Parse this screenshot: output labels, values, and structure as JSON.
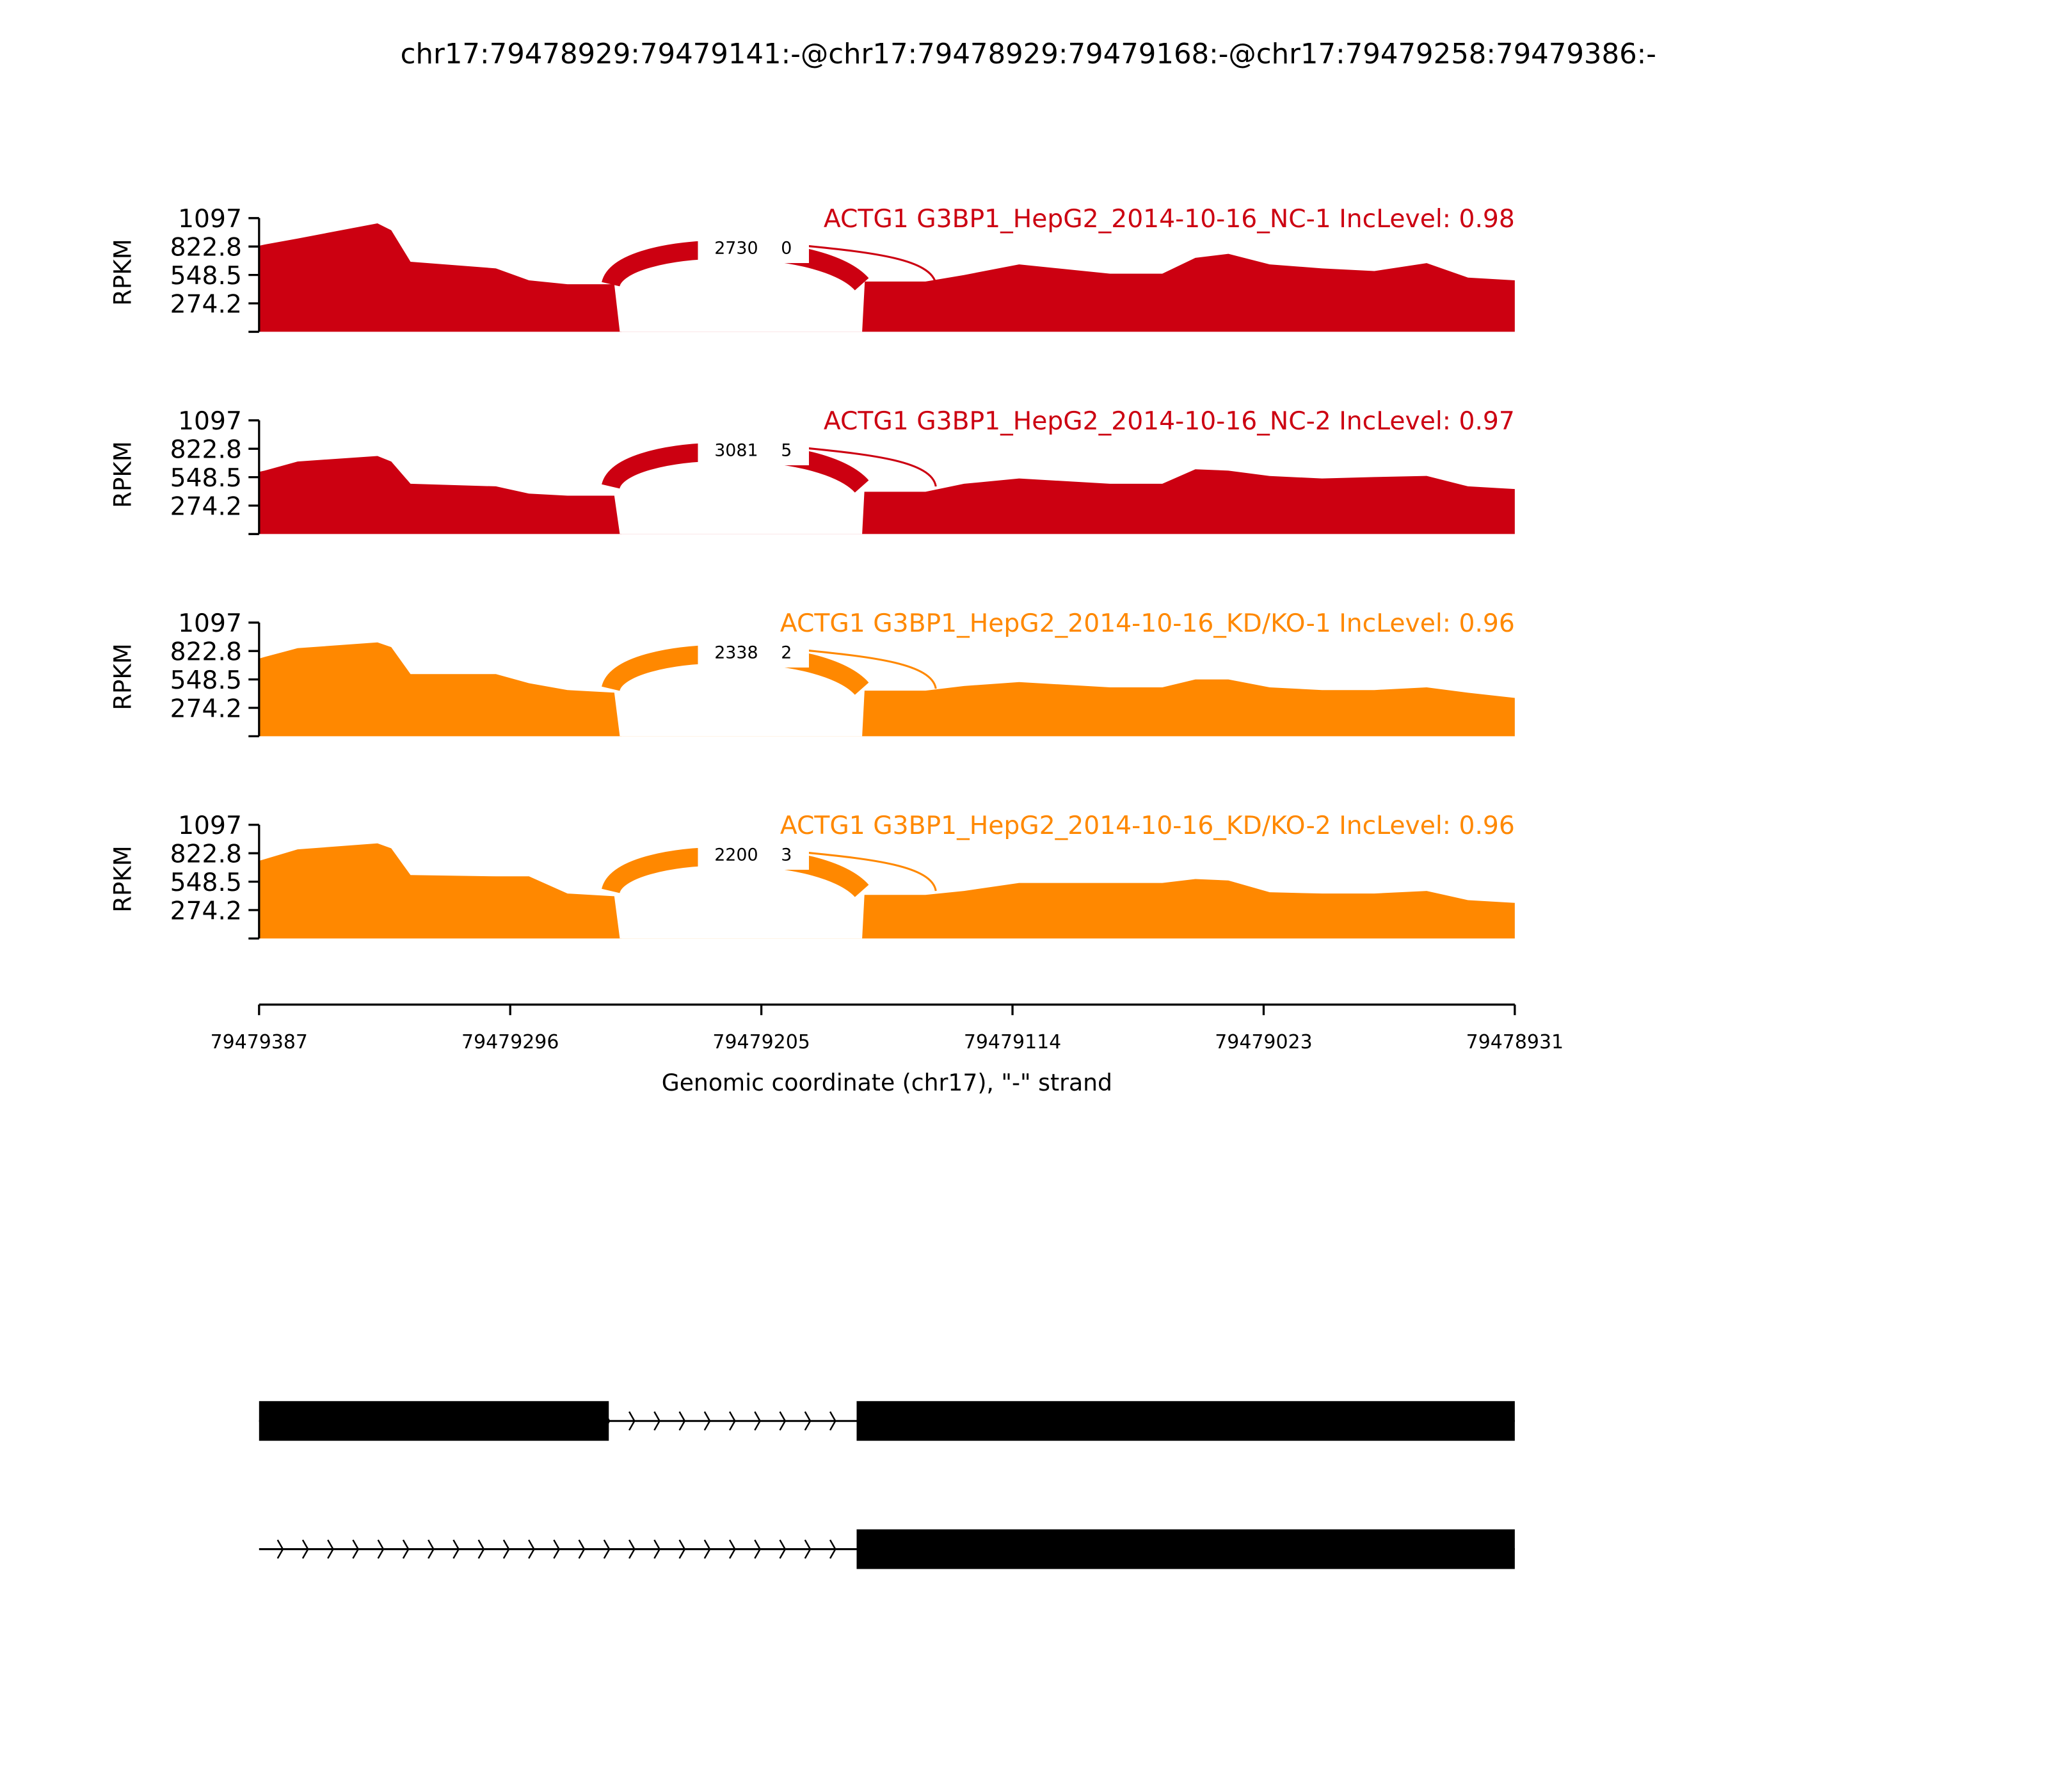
{
  "chart_data": {
    "type": "area",
    "title": "chr17:79478929:79479141:-@chr17:79478929:79479168:-@chr17:79479258:79479386:-",
    "xlabel": "Genomic coordinate (chr17), \"-\" strand",
    "ylabel": "RPKM",
    "xlim": [
      79479387,
      79478931
    ],
    "x_ticks": [
      "79479387",
      "79479296",
      "79479205",
      "79479114",
      "79479023",
      "79478931"
    ],
    "y_ticks": [
      "1097",
      "822.8",
      "548.5",
      "274.2"
    ],
    "ylim": [
      0,
      1097
    ],
    "gap_region_offsets_bp": [
      131,
      219
    ],
    "offsets_bp": [
      0,
      2,
      14,
      43,
      48,
      55,
      86,
      98,
      112,
      129,
      131,
      219,
      242,
      256,
      276,
      309,
      328,
      340,
      352,
      367,
      386,
      405,
      424,
      439,
      456
    ],
    "series": [
      {
        "name": "ACTG1 G3BP1_HepG2_2014-10-16_NC-1 IncLevel: 0.98",
        "color": "#cc0011",
        "values": [
          830,
          842,
          900,
          1046,
          980,
          676,
          612,
          497,
          459,
          459,
          0,
          485,
          485,
          548,
          650,
          561,
          561,
          714,
          752,
          650,
          612,
          586,
          663,
          523,
          497
        ],
        "junctions": {
          "inclusion": "2730",
          "skipping": "0"
        }
      },
      {
        "name": "ACTG1 G3BP1_HepG2_2014-10-16_NC-2 IncLevel: 0.97",
        "color": "#cc0011",
        "values": [
          600,
          612,
          700,
          753,
          700,
          485,
          460,
          390,
          370,
          370,
          0,
          408,
          408,
          485,
          536,
          485,
          485,
          625,
          612,
          560,
          536,
          550,
          561,
          460,
          434
        ],
        "junctions": {
          "inclusion": "3081",
          "skipping": "5"
        }
      },
      {
        "name": "ACTG1 G3BP1_HepG2_2014-10-16_KD/KO-1 IncLevel: 0.96",
        "color": "#ff8800",
        "values": [
          750,
          765,
          850,
          906,
          860,
          600,
          600,
          512,
          446,
          421,
          0,
          440,
          440,
          485,
          523,
          472,
          472,
          548,
          548,
          472,
          446,
          446,
          472,
          420,
          370
        ],
        "junctions": {
          "inclusion": "2338",
          "skipping": "2"
        }
      },
      {
        "name": "ACTG1 G3BP1_HepG2_2014-10-16_KD/KO-2 IncLevel: 0.96",
        "color": "#ff8800",
        "values": [
          750,
          765,
          860,
          918,
          870,
          612,
          600,
          600,
          434,
          408,
          0,
          421,
          421,
          459,
          536,
          536,
          536,
          574,
          560,
          446,
          434,
          434,
          459,
          370,
          344
        ],
        "junctions": {
          "inclusion": "2200",
          "skipping": "3"
        }
      }
    ],
    "gene_models": [
      {
        "exons_offsets_bp": [
          [
            0,
            127
          ],
          [
            217,
            456
          ]
        ]
      },
      {
        "exons_offsets_bp": [
          [
            217,
            456
          ]
        ]
      }
    ]
  }
}
